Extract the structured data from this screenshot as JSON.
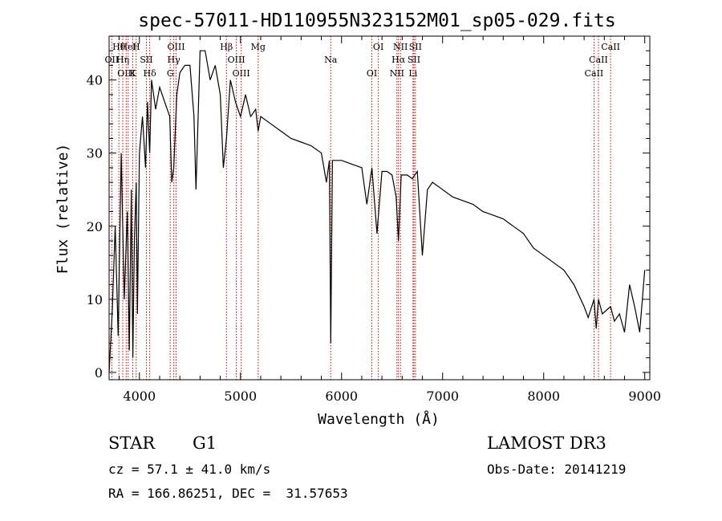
{
  "chart_data": {
    "type": "line",
    "title": "spec-57011-HD110955N323152M01_sp05-029.fits",
    "xlabel": "Wavelength (Å)",
    "ylabel": "Flux (relative)",
    "xlim": [
      3700,
      9050
    ],
    "ylim": [
      -1,
      46
    ],
    "x_ticks": [
      4000,
      5000,
      6000,
      7000,
      8000,
      9000
    ],
    "y_ticks": [
      0,
      10,
      20,
      30,
      40
    ],
    "grid": false,
    "series": [
      {
        "name": "flux",
        "x": [
          3700,
          3730,
          3760,
          3790,
          3820,
          3850,
          3880,
          3900,
          3920,
          3935,
          3950,
          3968,
          3980,
          4000,
          4030,
          4060,
          4080,
          4102,
          4120,
          4160,
          4200,
          4250,
          4300,
          4320,
          4340,
          4370,
          4400,
          4450,
          4500,
          4540,
          4560,
          4600,
          4650,
          4700,
          4750,
          4800,
          4830,
          4861,
          4900,
          4950,
          5000,
          5050,
          5100,
          5150,
          5175,
          5200,
          5300,
          5400,
          5500,
          5600,
          5700,
          5800,
          5850,
          5880,
          5893,
          5910,
          5950,
          6000,
          6100,
          6200,
          6250,
          6300,
          6350,
          6400,
          6450,
          6500,
          6540,
          6563,
          6590,
          6650,
          6700,
          6750,
          6800,
          6850,
          6900,
          7000,
          7100,
          7200,
          7300,
          7400,
          7500,
          7600,
          7700,
          7800,
          7900,
          8000,
          8100,
          8200,
          8300,
          8400,
          8440,
          8498,
          8520,
          8542,
          8580,
          8662,
          8700,
          8750,
          8800,
          8850,
          8900,
          8950,
          9000
        ],
        "y": [
          0,
          8,
          20,
          5,
          30,
          10,
          22,
          3,
          25,
          2,
          18,
          26,
          8,
          30,
          35,
          28,
          37,
          30,
          40,
          36,
          39,
          37,
          35,
          26,
          28,
          38,
          41,
          42,
          42,
          35,
          25,
          44,
          44,
          40,
          42,
          38,
          28,
          32,
          40,
          37,
          35,
          38,
          35,
          36,
          33,
          35,
          34,
          33,
          32,
          31.5,
          31,
          30,
          26,
          29,
          4,
          29,
          29,
          29,
          28.5,
          28,
          23,
          28,
          19,
          27.5,
          27.5,
          27,
          24,
          18,
          27,
          27,
          26.5,
          27.5,
          16,
          25,
          26,
          25,
          24,
          23.5,
          23,
          22,
          21.5,
          21,
          20,
          19,
          17,
          16,
          15,
          14,
          12,
          9,
          7.5,
          10,
          6,
          10,
          8,
          9,
          7,
          8,
          5.5,
          12,
          9,
          5.5,
          14
        ]
      }
    ],
    "spectral_lines": [
      {
        "label": "Hθ",
        "x": 3797
      },
      {
        "label": "OII",
        "x": 3727
      },
      {
        "label": "OIII",
        "x": 3869
      },
      {
        "label": "HeI",
        "x": 3889
      },
      {
        "label": "Hη",
        "x": 3835
      },
      {
        "label": "K",
        "x": 3934
      },
      {
        "label": "H",
        "x": 3968
      },
      {
        "label": "SII",
        "x": 4069
      },
      {
        "label": "Hδ",
        "x": 4102
      },
      {
        "label": "OIII",
        "x": 4363
      },
      {
        "label": "Hγ",
        "x": 4340
      },
      {
        "label": "G",
        "x": 4305
      },
      {
        "label": "Hβ",
        "x": 4861
      },
      {
        "label": "OIII",
        "x": 4959
      },
      {
        "label": "OIII",
        "x": 5007
      },
      {
        "label": "Mg",
        "x": 5175
      },
      {
        "label": "Na",
        "x": 5893
      },
      {
        "label": "OI",
        "x": 6300
      },
      {
        "label": "OI",
        "x": 6364
      },
      {
        "label": "Hα",
        "x": 6563
      },
      {
        "label": "NII",
        "x": 6548
      },
      {
        "label": "NII",
        "x": 6583
      },
      {
        "label": "SII",
        "x": 6716
      },
      {
        "label": "Li",
        "x": 6707
      },
      {
        "label": "SII",
        "x": 6731
      },
      {
        "label": "CaII",
        "x": 8542
      },
      {
        "label": "CaII",
        "x": 8498
      },
      {
        "label": "CaII",
        "x": 8662
      }
    ]
  },
  "info": {
    "object_class": "STAR",
    "subclass": "G1",
    "redshift": "cz = 57.1 ± 41.0 km/s",
    "coords": "RA = 166.86251, DEC =  31.57653",
    "survey": "LAMOST DR3",
    "obs_date": "Obs-Date: 20141219"
  },
  "colors": {
    "line_marker": "#cc0000",
    "spectrum": "#000000"
  }
}
